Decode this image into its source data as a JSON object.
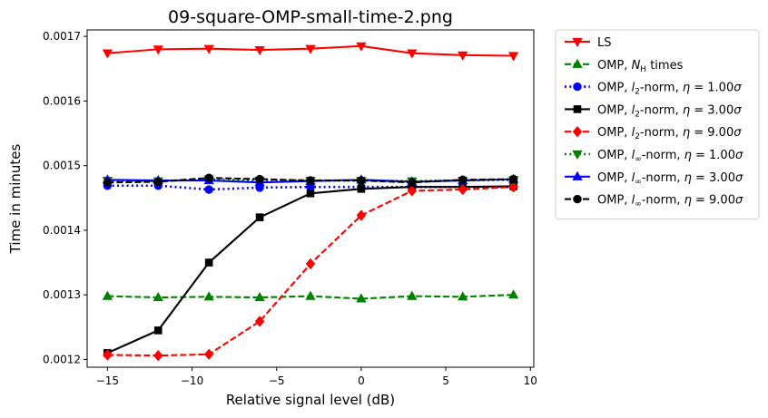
{
  "chart_data": {
    "type": "line",
    "title": "09-square-OMP-small-time-2.png",
    "xlabel": "Relative signal level (dB)",
    "ylabel": "Time in minutes",
    "xlim": [
      -16.2,
      10.2
    ],
    "ylim": [
      0.001188,
      0.00171
    ],
    "xticks": [
      -15,
      -10,
      -5,
      0,
      5,
      10
    ],
    "xtick_labels": [
      "−15",
      "−10",
      "−5",
      "0",
      "5",
      "10"
    ],
    "yticks": [
      0.0012,
      0.0013,
      0.0014,
      0.0015,
      0.0016,
      0.0017
    ],
    "ytick_labels": [
      "0.0012",
      "0.0013",
      "0.0014",
      "0.0015",
      "0.0016",
      "0.0017"
    ],
    "grid": false,
    "legend_position": "outside-top-right",
    "x": [
      -15,
      -12,
      -9,
      -6,
      -3,
      0,
      3,
      6,
      9
    ],
    "series": [
      {
        "name": "LS",
        "label_parts": [
          [
            "LS",
            "n"
          ]
        ],
        "color": "#ff0000",
        "linestyle": "solid",
        "marker": "triangle-down",
        "values": [
          0.001674,
          0.00168,
          0.001681,
          0.001679,
          0.001681,
          0.001685,
          0.001674,
          0.001671,
          0.00167
        ]
      },
      {
        "name": "OMP, N_H times",
        "label_parts": [
          [
            "OMP, ",
            "n"
          ],
          [
            "N",
            "i"
          ],
          [
            "H",
            "sub"
          ],
          [
            " times",
            "n"
          ]
        ],
        "color": "#008000",
        "linestyle": "dashed",
        "marker": "triangle-up",
        "values": [
          0.001298,
          0.001296,
          0.001297,
          0.001296,
          0.001298,
          0.001294,
          0.001298,
          0.001297,
          0.0013
        ]
      },
      {
        "name": "OMP, l_2-norm, eta = 1.00sigma",
        "label_parts": [
          [
            "OMP, ",
            "n"
          ],
          [
            "l",
            "i"
          ],
          [
            "2",
            "sub"
          ],
          [
            "-norm, ",
            "n"
          ],
          [
            "η",
            "i"
          ],
          [
            " = 1.00",
            "n"
          ],
          [
            "σ",
            "i"
          ]
        ],
        "color": "#0000ff",
        "linestyle": "dotted",
        "marker": "circle",
        "values": [
          0.001469,
          0.001469,
          0.001463,
          0.001466,
          0.001467,
          0.001467,
          0.001467,
          0.001467,
          0.001467
        ]
      },
      {
        "name": "OMP, l_2-norm, eta = 3.00sigma",
        "label_parts": [
          [
            "OMP, ",
            "n"
          ],
          [
            "l",
            "i"
          ],
          [
            "2",
            "sub"
          ],
          [
            "-norm, ",
            "n"
          ],
          [
            "η",
            "i"
          ],
          [
            " = 3.00",
            "n"
          ],
          [
            "σ",
            "i"
          ]
        ],
        "color": "#000000",
        "linestyle": "solid",
        "marker": "square",
        "values": [
          0.00121,
          0.001245,
          0.00135,
          0.00142,
          0.001457,
          0.001464,
          0.001467,
          0.001467,
          0.001468
        ]
      },
      {
        "name": "OMP, l_2-norm, eta = 9.00sigma",
        "label_parts": [
          [
            "OMP, ",
            "n"
          ],
          [
            "l",
            "i"
          ],
          [
            "2",
            "sub"
          ],
          [
            "-norm, ",
            "n"
          ],
          [
            "η",
            "i"
          ],
          [
            " = 9.00",
            "n"
          ],
          [
            "σ",
            "i"
          ]
        ],
        "color": "#ff0000",
        "linestyle": "dashed",
        "marker": "diamond",
        "values": [
          0.001207,
          0.001206,
          0.001208,
          0.001259,
          0.001348,
          0.001423,
          0.001461,
          0.001463,
          0.001467
        ]
      },
      {
        "name": "OMP, l_inf-norm, eta = 1.00sigma",
        "label_parts": [
          [
            "OMP, ",
            "n"
          ],
          [
            "l",
            "i"
          ],
          [
            "∞",
            "sub"
          ],
          [
            "-norm, ",
            "n"
          ],
          [
            "η",
            "i"
          ],
          [
            " = 1.00",
            "n"
          ],
          [
            "σ",
            "i"
          ]
        ],
        "color": "#008000",
        "linestyle": "dotted",
        "marker": "triangle-down",
        "values": [
          0.001477,
          0.001476,
          0.001479,
          0.001477,
          0.001477,
          0.001477,
          0.001476,
          0.001477,
          0.001478
        ]
      },
      {
        "name": "OMP, l_inf-norm, eta = 3.00sigma",
        "label_parts": [
          [
            "OMP, ",
            "n"
          ],
          [
            "l",
            "i"
          ],
          [
            "∞",
            "sub"
          ],
          [
            "-norm, ",
            "n"
          ],
          [
            "η",
            "i"
          ],
          [
            " = 3.00",
            "n"
          ],
          [
            "σ",
            "i"
          ]
        ],
        "color": "#0000ff",
        "linestyle": "solid",
        "marker": "triangle-up",
        "values": [
          0.001478,
          0.001477,
          0.001477,
          0.001474,
          0.001476,
          0.001478,
          0.001475,
          0.001477,
          0.001479
        ]
      },
      {
        "name": "OMP, l_inf-norm, eta = 9.00sigma",
        "label_parts": [
          [
            "OMP, ",
            "n"
          ],
          [
            "l",
            "i"
          ],
          [
            "∞",
            "sub"
          ],
          [
            "-norm, ",
            "n"
          ],
          [
            "η",
            "i"
          ],
          [
            " = 9.00",
            "n"
          ],
          [
            "σ",
            "i"
          ]
        ],
        "color": "#000000",
        "linestyle": "dashed",
        "marker": "circle",
        "values": [
          0.001474,
          0.001475,
          0.001481,
          0.001479,
          0.001477,
          0.001477,
          0.001474,
          0.001478,
          0.001479
        ]
      }
    ]
  }
}
